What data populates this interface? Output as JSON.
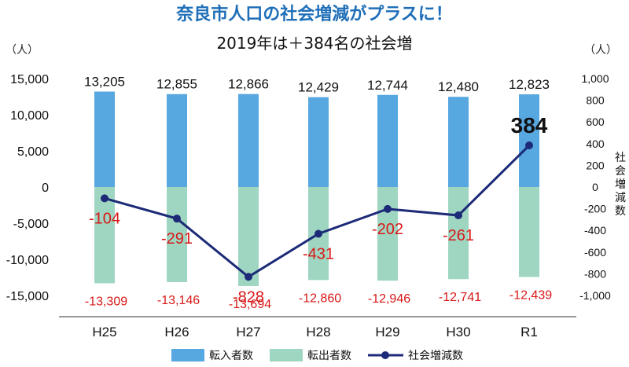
{
  "title": "奈良市人口の社会増減がプラスに！",
  "subtitle": "2019年は＋384名の社会増",
  "left_unit": "（人）",
  "right_unit": "（人）",
  "right_axis_label": "社会増減数",
  "colors": {
    "title": "#1f6fb8",
    "in_bar": "#57a7e0",
    "out_bar": "#9fd6c1",
    "line": "#1c2a78",
    "out_label": "#d81818"
  },
  "chart_data": {
    "type": "bar",
    "categories": [
      "H25",
      "H26",
      "H27",
      "H28",
      "H29",
      "H30",
      "R1"
    ],
    "series": [
      {
        "name": "転入者数",
        "type": "bar",
        "axis": "left",
        "values": [
          13205,
          12855,
          12866,
          12429,
          12744,
          12480,
          12823
        ],
        "labels": [
          "13,205",
          "12,855",
          "12,866",
          "12,429",
          "12,744",
          "12,480",
          "12,823"
        ]
      },
      {
        "name": "転出者数",
        "type": "bar",
        "axis": "left",
        "values": [
          -13309,
          -13146,
          -13694,
          -12860,
          -12946,
          -12741,
          -12439
        ],
        "labels": [
          "-13,309",
          "-13,146",
          "-13,694",
          "-12,860",
          "-12,946",
          "-12,741",
          "-12,439"
        ]
      },
      {
        "name": "社会増減数",
        "type": "line",
        "axis": "right",
        "values": [
          -104,
          -291,
          -828,
          -431,
          -202,
          -261,
          384
        ],
        "labels": [
          "-104",
          "-291",
          "-828",
          "-431",
          "-202",
          "-261",
          "384"
        ]
      }
    ],
    "y_left": {
      "ylim": [
        -15000,
        15000
      ],
      "ticks": [
        15000,
        10000,
        5000,
        0,
        -5000,
        -10000,
        -15000
      ],
      "tick_labels": [
        "15,000",
        "10,000",
        "5,000",
        "0",
        "-5,000",
        "-10,000",
        "-15,000"
      ]
    },
    "y_right": {
      "ylim": [
        -1000,
        1000
      ],
      "ticks": [
        1000,
        800,
        600,
        400,
        200,
        0,
        -200,
        -400,
        -600,
        -800,
        -1000
      ],
      "tick_labels": [
        "1,000",
        "800",
        "600",
        "400",
        "200",
        "0",
        "-200",
        "-400",
        "-600",
        "-800",
        "-1,000"
      ]
    },
    "legend": {
      "position": "bottom",
      "entries": [
        "転入者数",
        "転出者数",
        "社会増減数"
      ]
    },
    "grid": false
  }
}
